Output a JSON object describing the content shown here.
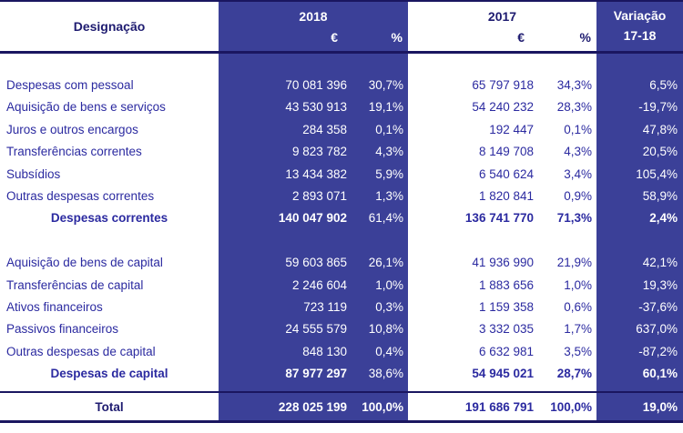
{
  "colors": {
    "blue_fill": "#3b4098",
    "navy_line": "#1a1660",
    "text_blue": "#2b2aa0",
    "header_text": "#1e1b70",
    "white_text": "#ffffff"
  },
  "chart_data": {
    "type": "table",
    "header": {
      "designacao": "Designação",
      "year_2018": "2018",
      "year_2017": "2017",
      "variacao_line1": "Variação",
      "variacao_line2": "17-18",
      "euro_symbol": "€",
      "percent_symbol": "%"
    },
    "sections": [
      {
        "rows": [
          {
            "label": "Despesas com pessoal",
            "e2018": "70 081 396",
            "p2018": "30,7%",
            "e2017": "65 797 918",
            "p2017": "34,3%",
            "variacao": "6,5%"
          },
          {
            "label": "Aquisição de bens e serviços",
            "e2018": "43 530 913",
            "p2018": "19,1%",
            "e2017": "54 240 232",
            "p2017": "28,3%",
            "variacao": "-19,7%"
          },
          {
            "label": "Juros e outros encargos",
            "e2018": "284 358",
            "p2018": "0,1%",
            "e2017": "192 447",
            "p2017": "0,1%",
            "variacao": "47,8%"
          },
          {
            "label": "Transferências correntes",
            "e2018": "9 823 782",
            "p2018": "4,3%",
            "e2017": "8 149 708",
            "p2017": "4,3%",
            "variacao": "20,5%"
          },
          {
            "label": "Subsídios",
            "e2018": "13 434 382",
            "p2018": "5,9%",
            "e2017": "6 540 624",
            "p2017": "3,4%",
            "variacao": "105,4%"
          },
          {
            "label": "Outras despesas correntes",
            "e2018": "2 893 071",
            "p2018": "1,3%",
            "e2017": "1 820 841",
            "p2017": "0,9%",
            "variacao": "58,9%"
          }
        ],
        "subtotal": {
          "label": "Despesas correntes",
          "e2018": "140 047 902",
          "p2018": "61,4%",
          "e2017": "136 741 770",
          "p2017": "71,3%",
          "variacao": "2,4%"
        }
      },
      {
        "rows": [
          {
            "label": "Aquisição de bens de capital",
            "e2018": "59 603 865",
            "p2018": "26,1%",
            "e2017": "41 936 990",
            "p2017": "21,9%",
            "variacao": "42,1%"
          },
          {
            "label": "Transferências de capital",
            "e2018": "2 246 604",
            "p2018": "1,0%",
            "e2017": "1 883 656",
            "p2017": "1,0%",
            "variacao": "19,3%"
          },
          {
            "label": "Ativos financeiros",
            "e2018": "723 119",
            "p2018": "0,3%",
            "e2017": "1 159 358",
            "p2017": "0,6%",
            "variacao": "-37,6%"
          },
          {
            "label": "Passivos financeiros",
            "e2018": "24 555 579",
            "p2018": "10,8%",
            "e2017": "3 332 035",
            "p2017": "1,7%",
            "variacao": "637,0%"
          },
          {
            "label": "Outras despesas de capital",
            "e2018": "848 130",
            "p2018": "0,4%",
            "e2017": "6 632 981",
            "p2017": "3,5%",
            "variacao": "-87,2%"
          }
        ],
        "subtotal": {
          "label": "Despesas de capital",
          "e2018": "87 977 297",
          "p2018": "38,6%",
          "e2017": "54 945 021",
          "p2017": "28,7%",
          "variacao": "60,1%"
        }
      }
    ],
    "total": {
      "label": "Total",
      "e2018": "228 025 199",
      "p2018": "100,0%",
      "e2017": "191 686 791",
      "p2017": "100,0%",
      "variacao": "19,0%"
    }
  }
}
